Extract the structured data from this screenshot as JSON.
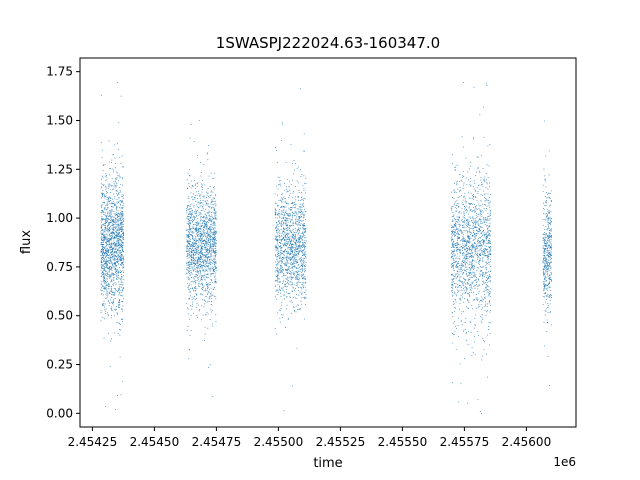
{
  "chart_data": {
    "type": "scatter",
    "title": "1SWASPJ222024.63-160347.0",
    "xlabel": "time",
    "ylabel": "flux",
    "x_offset_label": "1e6",
    "xlim": [
      2.4542,
      2.4562
    ],
    "ylim": [
      -0.07,
      1.82
    ],
    "x_ticks": [
      2.45425,
      2.4545,
      2.45475,
      2.455,
      2.45525,
      2.4555,
      2.45575,
      2.456
    ],
    "x_tick_labels": [
      "2.45425",
      "2.45450",
      "2.45475",
      "2.45500",
      "2.45525",
      "2.45550",
      "2.45575",
      "2.45600"
    ],
    "y_ticks": [
      0.0,
      0.25,
      0.5,
      0.75,
      1.0,
      1.25,
      1.5,
      1.75
    ],
    "y_tick_labels": [
      "0.00",
      "0.25",
      "0.50",
      "0.75",
      "1.00",
      "1.25",
      "1.50",
      "1.75"
    ],
    "grid": false,
    "marker_color": "#1f77b4",
    "series": [
      {
        "clusters": [
          {
            "x_range": [
              2.454283,
              2.454375
            ],
            "center": 0.86,
            "spread": 0.17,
            "count": 1500
          },
          {
            "x_range": [
              2.454628,
              2.454748
            ],
            "center": 0.85,
            "spread": 0.15,
            "count": 1500
          },
          {
            "x_range": [
              2.454985,
              2.45511
            ],
            "center": 0.86,
            "spread": 0.15,
            "count": 1300
          },
          {
            "x_range": [
              2.455695,
              2.455855
            ],
            "center": 0.85,
            "spread": 0.18,
            "count": 1500
          },
          {
            "x_range": [
              2.456065,
              2.4561
            ],
            "center": 0.83,
            "spread": 0.16,
            "count": 450
          }
        ]
      }
    ]
  }
}
